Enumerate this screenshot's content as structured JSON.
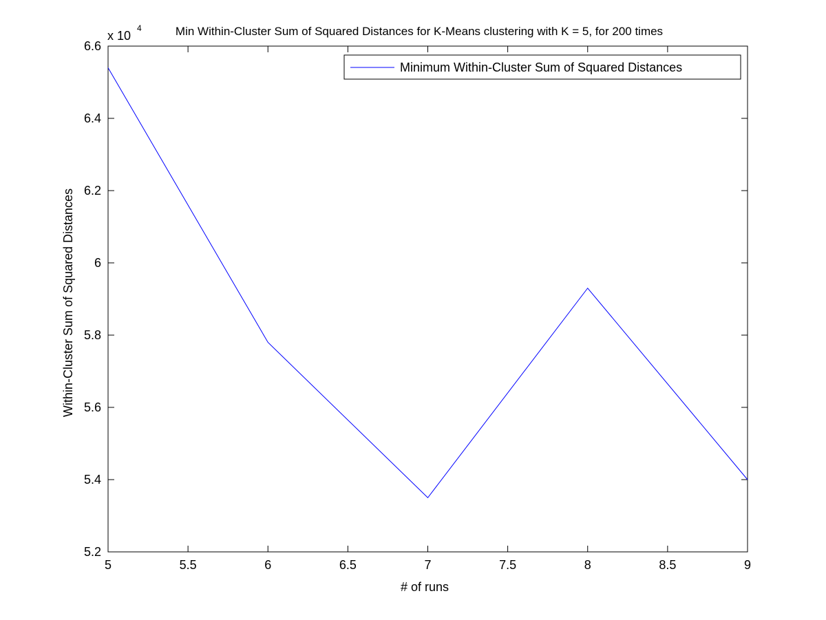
{
  "chart_data": {
    "type": "line",
    "title": "Min Within-Cluster Sum of Squared Distances for K-Means clustering with K = 5, for 200 times",
    "xlabel": "# of runs",
    "ylabel": "Within-Cluster Sum of Squared Distances",
    "y_exponent_label": "x 10",
    "y_exponent_power": "4",
    "xlim": [
      5,
      9
    ],
    "ylim": [
      5.2,
      6.6
    ],
    "x_ticks": [
      5,
      5.5,
      6,
      6.5,
      7,
      7.5,
      8,
      8.5,
      9
    ],
    "x_tick_labels": [
      "5",
      "5.5",
      "6",
      "6.5",
      "7",
      "7.5",
      "8",
      "8.5",
      "9"
    ],
    "y_ticks": [
      5.2,
      5.4,
      5.6,
      5.8,
      6.0,
      6.2,
      6.4,
      6.6
    ],
    "y_tick_labels": [
      "5.2",
      "5.4",
      "5.6",
      "5.8",
      "6",
      "6.2",
      "6.4",
      "6.6"
    ],
    "grid": false,
    "legend_position": "top-right",
    "series": [
      {
        "name": "Minimum Within-Cluster Sum of Squared Distances",
        "color": "#0000ff",
        "x": [
          5,
          6,
          7,
          8,
          9
        ],
        "y": [
          6.54,
          5.78,
          5.35,
          5.93,
          5.4
        ]
      }
    ]
  }
}
